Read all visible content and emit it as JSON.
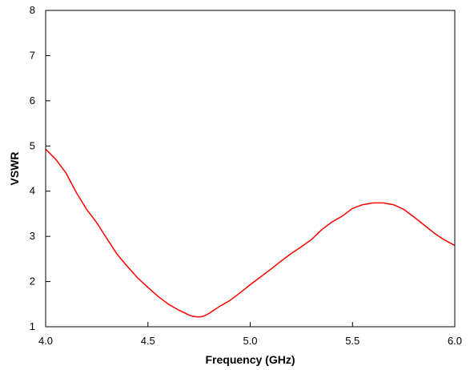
{
  "chart_data": {
    "type": "line",
    "title": "",
    "xlabel": "Frequency (GHz)",
    "ylabel": "VSWR",
    "xlim": [
      4.0,
      6.0
    ],
    "ylim": [
      1,
      8
    ],
    "x_ticks": [
      "4.0",
      "4.5",
      "5.0",
      "5.5",
      "6.0"
    ],
    "y_ticks": [
      "1",
      "2",
      "3",
      "4",
      "5",
      "6",
      "7",
      "8"
    ],
    "grid": false,
    "legend": "none",
    "series": [
      {
        "color": "#ff0000",
        "x": [
          4.0,
          4.05,
          4.1,
          4.15,
          4.2,
          4.25,
          4.3,
          4.35,
          4.4,
          4.45,
          4.5,
          4.55,
          4.6,
          4.65,
          4.7,
          4.72,
          4.74,
          4.76,
          4.78,
          4.8,
          4.85,
          4.9,
          4.95,
          5.0,
          5.05,
          5.1,
          5.15,
          5.2,
          5.25,
          5.3,
          5.35,
          5.4,
          5.45,
          5.5,
          5.55,
          5.6,
          5.65,
          5.7,
          5.75,
          5.8,
          5.85,
          5.9,
          5.95,
          6.0
        ],
        "y": [
          4.93,
          4.7,
          4.4,
          3.97,
          3.6,
          3.3,
          2.95,
          2.6,
          2.33,
          2.08,
          1.87,
          1.67,
          1.5,
          1.37,
          1.26,
          1.23,
          1.22,
          1.22,
          1.25,
          1.3,
          1.45,
          1.58,
          1.75,
          1.93,
          2.1,
          2.27,
          2.45,
          2.62,
          2.77,
          2.93,
          3.15,
          3.32,
          3.45,
          3.62,
          3.7,
          3.74,
          3.74,
          3.7,
          3.6,
          3.43,
          3.25,
          3.07,
          2.92,
          2.8
        ]
      }
    ]
  }
}
